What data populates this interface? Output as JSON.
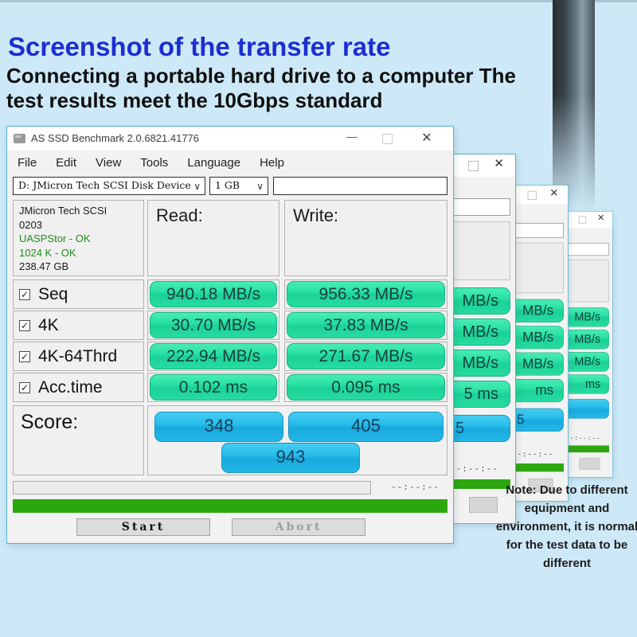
{
  "header": {
    "title": "Screenshot of the transfer rate",
    "subtitle_lines": [
      "Connecting a portable hard drive to a computer The",
      "test results meet the 10Gbps standard"
    ]
  },
  "main_window": {
    "title": "AS SSD Benchmark 2.0.6821.41776",
    "menu": [
      "File",
      "Edit",
      "View",
      "Tools",
      "Language",
      "Help"
    ],
    "drive_select": "D: JMicron Tech SCSI Disk Device",
    "size_select": "1 GB",
    "info_lines": [
      {
        "text": "JMicron Tech SCSI",
        "color": "#1a1a1a"
      },
      {
        "text": "0203",
        "color": "#1a1a1a"
      },
      {
        "text": "UASPStor - OK",
        "color": "#1e8c1e"
      },
      {
        "text": "1024 K - OK",
        "color": "#1e8c1e"
      },
      {
        "text": "238.47 GB",
        "color": "#1a1a1a"
      }
    ],
    "read_label": "Read:",
    "write_label": "Write:",
    "rows": [
      {
        "label": "Seq",
        "read": "940.18 MB/s",
        "write": "956.33 MB/s",
        "checked": true
      },
      {
        "label": "4K",
        "read": "30.70 MB/s",
        "write": "37.83 MB/s",
        "checked": true
      },
      {
        "label": "4K-64Thrd",
        "read": "222.94 MB/s",
        "write": "271.67 MB/s",
        "checked": true
      },
      {
        "label": "Acc.time",
        "read": "0.102 ms",
        "write": "0.095 ms",
        "checked": true
      }
    ],
    "score_label": "Score:",
    "scores": {
      "read": "348",
      "write": "405",
      "total": "943"
    },
    "time_display": "--:--:--",
    "buttons": {
      "start": "Start",
      "abort": "Abort"
    }
  },
  "background_windows": [
    {
      "pills": [
        "MB/s",
        "MB/s",
        "MB/s",
        "5 ms"
      ],
      "score_fragment": "5",
      "time_display": "--:--:--"
    },
    {
      "pills": [
        "MB/s",
        "MB/s",
        "MB/s",
        "ms"
      ],
      "score_fragment": "5",
      "time_display": "--:--:--"
    },
    {
      "pills": [
        "MB/s",
        "MB/s",
        "MB/s",
        "ms"
      ],
      "score_fragment": "",
      "time_display": "--:--:--"
    }
  ],
  "note": {
    "lines": [
      "Note: Due to different",
      "equipment and",
      "environment, it is normal",
      "for the test data to be",
      "different"
    ]
  },
  "icons": {
    "check": "✓",
    "chevron_down": "∨",
    "close": "✕",
    "minimize": "—"
  },
  "colors": {
    "title_blue": "#1b2fd0",
    "pill_green": "#22dfa0",
    "pill_blue": "#29bdea",
    "progress_green": "#2ca70e",
    "ok_green": "#1e8c1e",
    "window_border": "#54b2d2",
    "background": "#cde9f7"
  }
}
